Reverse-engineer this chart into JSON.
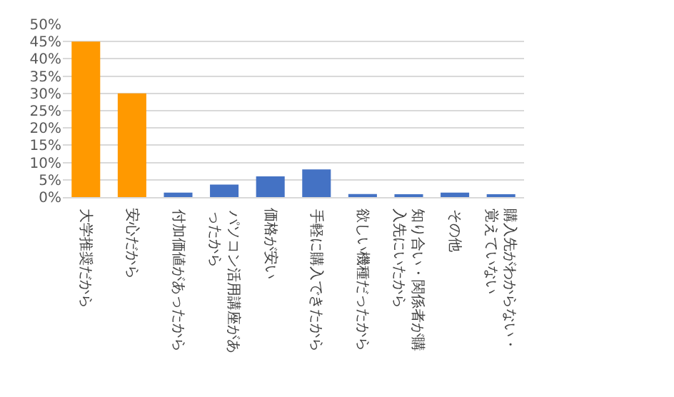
{
  "chart_data": {
    "type": "bar",
    "categories": [
      "大学推奨だから",
      "安心だから",
      "付加価値があったから",
      "パソコン活用講座があったから",
      "価格が安い",
      "手軽に購入できたから",
      "欲しい機種だったから",
      "知り合い・関係者が購入先にいたから",
      "その他",
      "購入先がわからない・覚えていない"
    ],
    "values": [
      45,
      30,
      1.3,
      3.6,
      6,
      8,
      0.9,
      0.5,
      1.3,
      0.5
    ],
    "colors": [
      "#ff9900",
      "#ff9900",
      "#4472c4",
      "#4472c4",
      "#4472c4",
      "#4472c4",
      "#4472c4",
      "#4472c4",
      "#4472c4",
      "#4472c4"
    ],
    "ylim": [
      0,
      50
    ],
    "yticks": [
      {
        "value": 0,
        "label": "0%"
      },
      {
        "value": 5,
        "label": "5%"
      },
      {
        "value": 10,
        "label": "10%"
      },
      {
        "value": 15,
        "label": "15%"
      },
      {
        "value": 20,
        "label": "20%"
      },
      {
        "value": 25,
        "label": "25%"
      },
      {
        "value": 30,
        "label": "30%"
      },
      {
        "value": 35,
        "label": "35%"
      },
      {
        "value": 40,
        "label": "40%"
      },
      {
        "value": 45,
        "label": "45%"
      },
      {
        "value": 50,
        "label": "50%"
      }
    ],
    "grid": "y"
  }
}
